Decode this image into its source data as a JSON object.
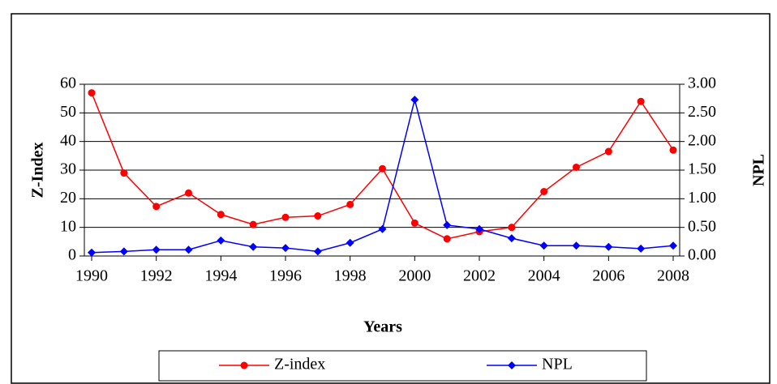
{
  "chart_data": {
    "type": "line",
    "x": [
      1990,
      1991,
      1992,
      1993,
      1994,
      1995,
      1996,
      1997,
      1998,
      1999,
      2000,
      2001,
      2002,
      2003,
      2004,
      2005,
      2006,
      2007,
      2008
    ],
    "series": [
      {
        "name": "Z-index",
        "color": "#ff0000",
        "marker": "circle",
        "values": [
          57,
          29,
          17.3,
          22,
          14.5,
          11,
          13.5,
          14,
          18,
          30.5,
          11.5,
          6,
          8.5,
          10,
          22.5,
          31,
          36.5,
          54,
          37
        ]
      },
      {
        "name": "NPL",
        "color": "#0000ff",
        "marker": "diamond",
        "axis": "y2",
        "values": [
          0.06,
          0.08,
          0.11,
          0.11,
          0.27,
          0.16,
          0.14,
          0.08,
          0.23,
          0.47,
          2.73,
          0.54,
          0.47,
          0.31,
          0.18,
          0.18,
          0.16,
          0.13,
          0.18
        ]
      }
    ],
    "xlabel": "Years",
    "ylabel": "Z-Index",
    "y2label": "NPL",
    "xlim": [
      1990,
      2008
    ],
    "xticks": [
      1990,
      1992,
      1994,
      1996,
      1998,
      2000,
      2002,
      2004,
      2006,
      2008
    ],
    "ylim": [
      0,
      60
    ],
    "yticks": [
      0,
      10,
      20,
      30,
      40,
      50,
      60
    ],
    "y2lim": [
      0,
      3
    ],
    "y2ticks": [
      {
        "value": 0,
        "label": "0.00"
      },
      {
        "value": 0.5,
        "label": "0.50"
      },
      {
        "value": 1,
        "label": "1.00"
      },
      {
        "value": 1.5,
        "label": "1.50"
      },
      {
        "value": 2,
        "label": "2.00"
      },
      {
        "value": 2.5,
        "label": "2.50"
      },
      {
        "value": 3,
        "label": "3.00"
      }
    ],
    "grid": true,
    "legend": "bottom"
  }
}
